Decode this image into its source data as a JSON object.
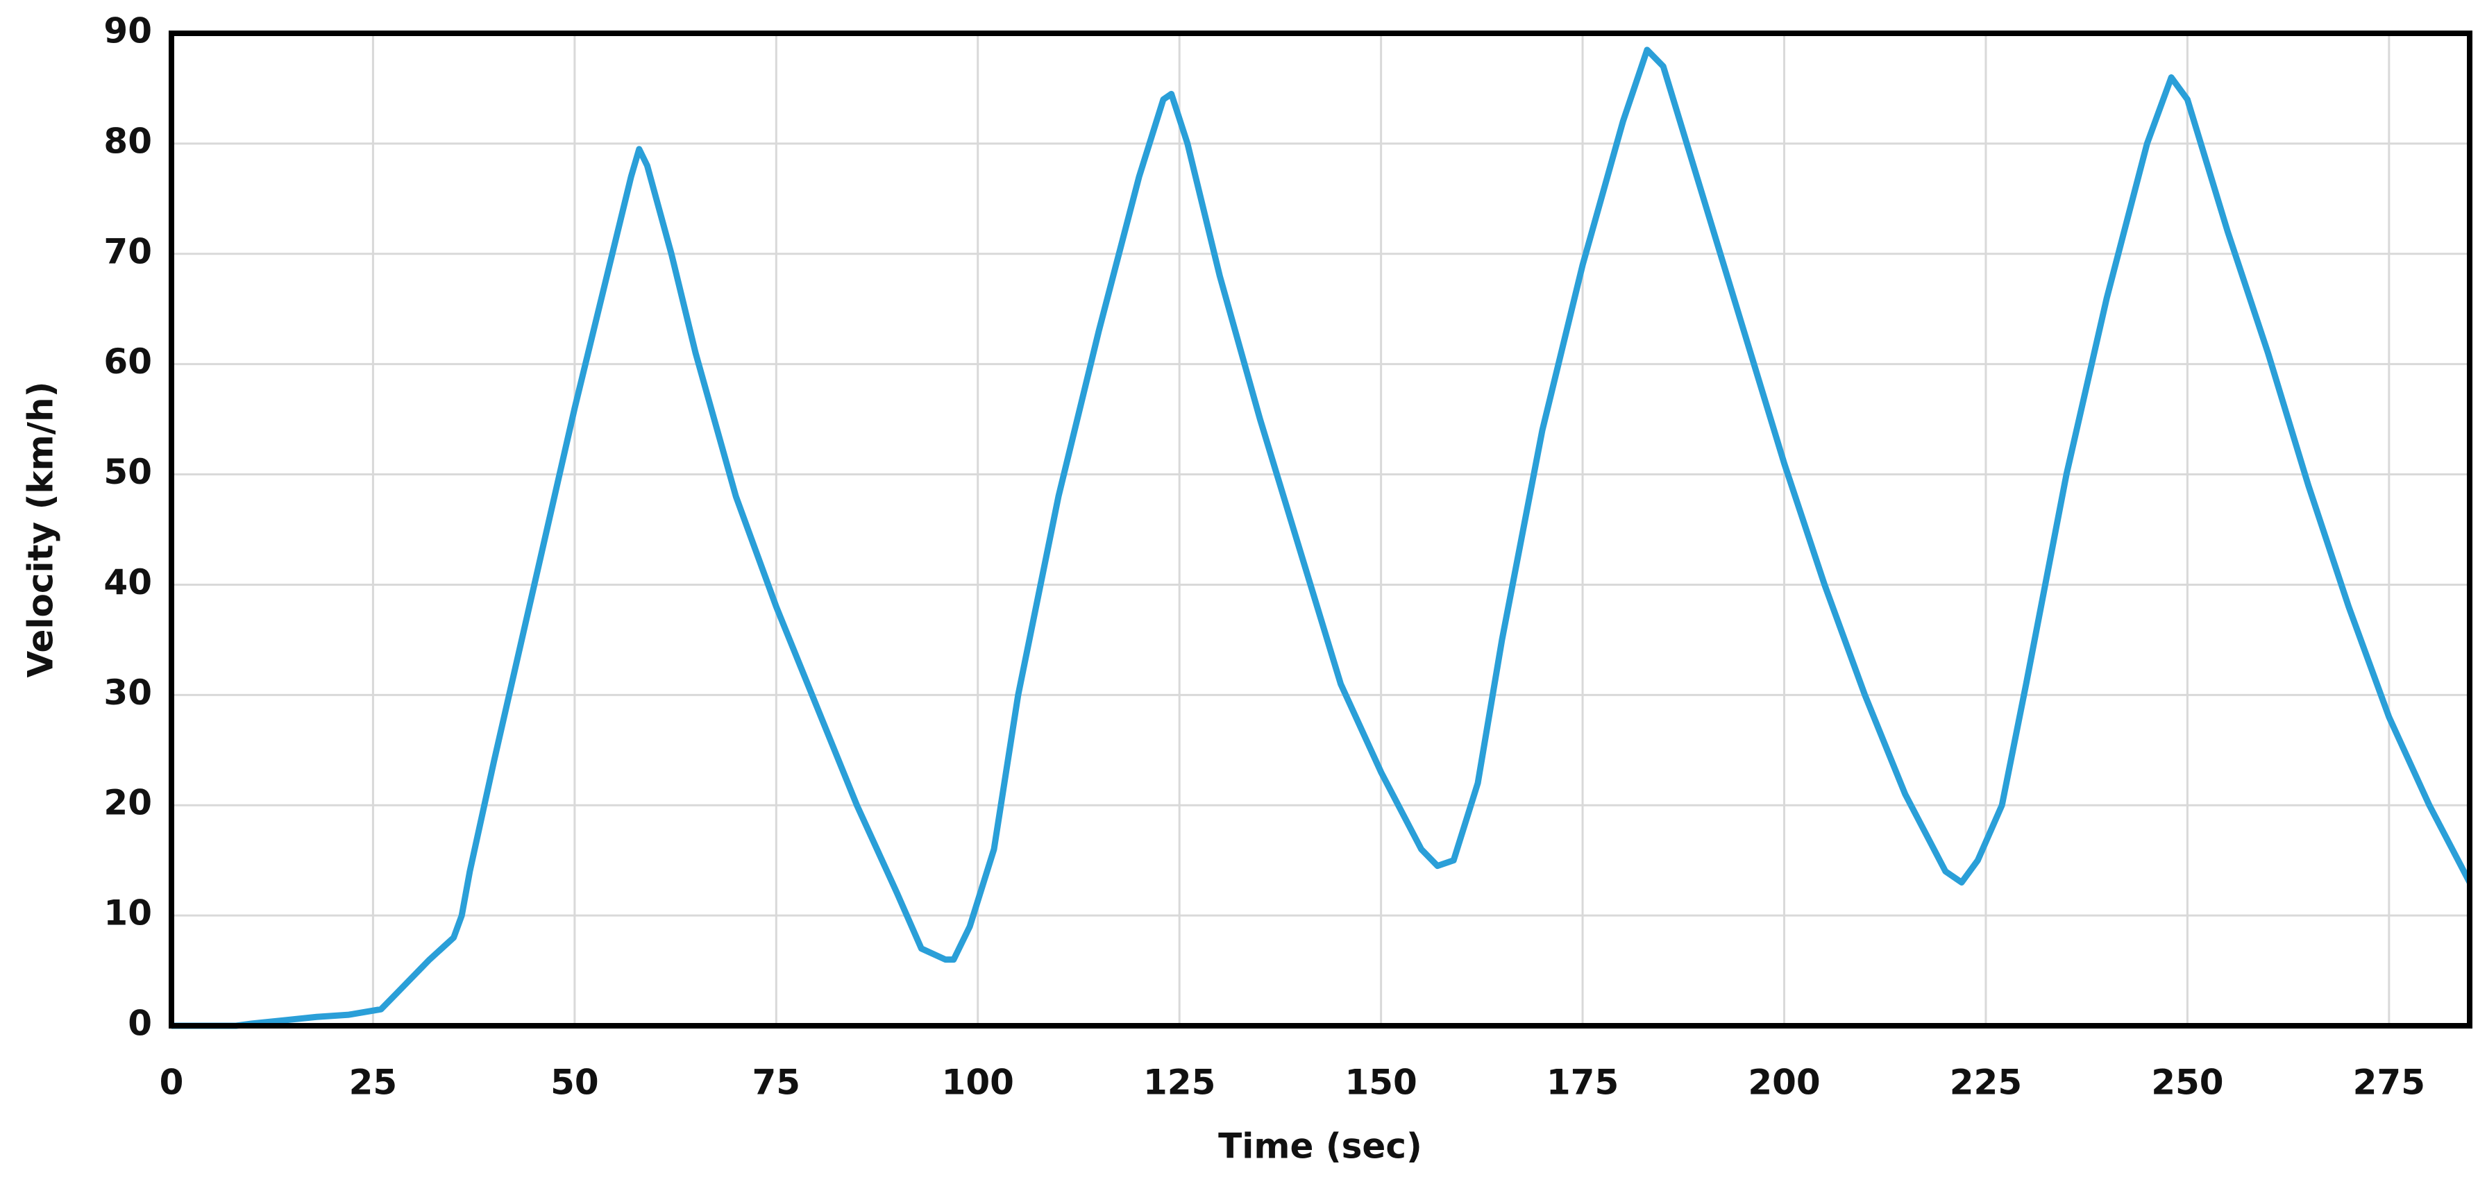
{
  "chart_data": {
    "type": "line",
    "x_label": "Time (sec)",
    "y_label": "Velocity (km/h)",
    "x": [
      0,
      8,
      10,
      14,
      18,
      22,
      26,
      28,
      30,
      32,
      35,
      36,
      37,
      40,
      45,
      50,
      55,
      57,
      58,
      59,
      62,
      65,
      70,
      75,
      80,
      85,
      90,
      93,
      96,
      97,
      99,
      102,
      105,
      110,
      115,
      120,
      123,
      124,
      126,
      130,
      135,
      140,
      145,
      150,
      155,
      157,
      159,
      162,
      165,
      170,
      175,
      180,
      183,
      185,
      190,
      195,
      200,
      205,
      210,
      215,
      220,
      222,
      224,
      227,
      230,
      235,
      240,
      245,
      248,
      250,
      255,
      260,
      265,
      270,
      275,
      280,
      285
    ],
    "series": [
      {
        "name": "Velocity",
        "color": "#2a9fd8",
        "values": [
          0,
          0,
          0.2,
          0.5,
          0.8,
          1,
          1.5,
          3,
          4.5,
          6,
          8,
          10,
          14,
          24,
          40,
          56,
          71,
          77,
          79.5,
          78,
          70,
          61,
          48,
          38,
          29,
          20,
          12,
          7,
          6,
          6,
          9,
          16,
          30,
          48,
          63,
          77,
          84,
          84.5,
          80,
          68,
          55,
          43,
          31,
          23,
          16,
          14.5,
          15,
          22,
          35,
          54,
          69,
          82,
          88.5,
          87,
          75,
          63,
          51,
          40,
          30,
          21,
          14,
          13,
          15,
          20,
          31,
          50,
          66,
          80,
          86,
          84,
          72,
          61,
          49,
          38,
          28,
          20,
          13
        ]
      }
    ],
    "xlim": [
      0,
      285
    ],
    "xticks": [
      0,
      25,
      50,
      75,
      100,
      125,
      150,
      175,
      200,
      225,
      250,
      275
    ],
    "ylim": [
      0,
      90
    ],
    "yticks": [
      0,
      10,
      20,
      30,
      40,
      50,
      60,
      70,
      80,
      90
    ],
    "grid": true
  }
}
